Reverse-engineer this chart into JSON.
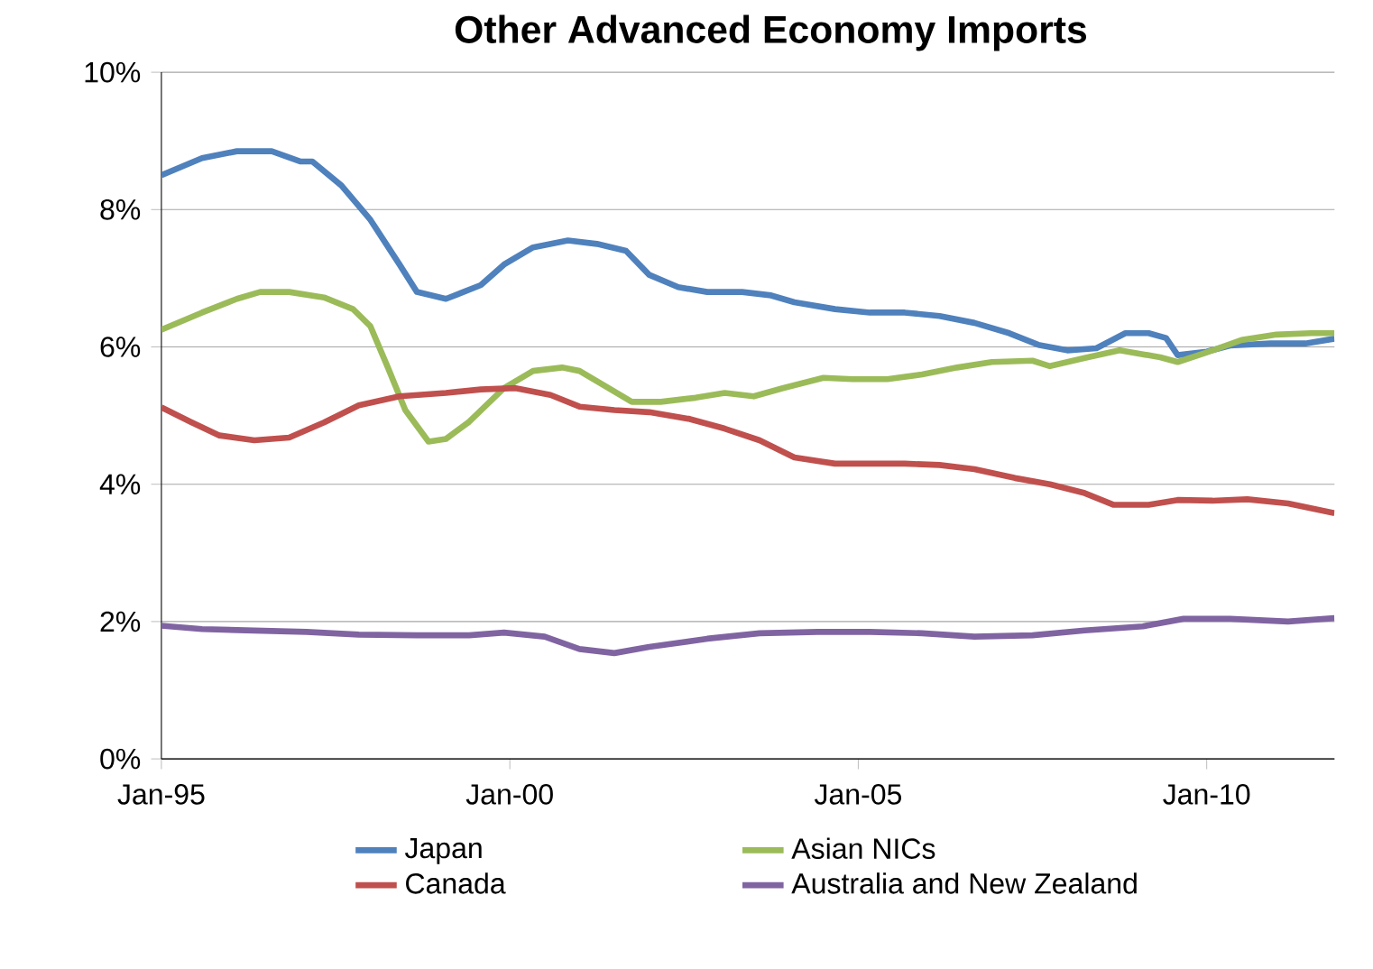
{
  "chart_data": {
    "type": "line",
    "title": "Other Advanced Economy Imports",
    "xlim": [
      "1995-01",
      "2011-11"
    ],
    "xticks": [
      {
        "value": "1995-01",
        "label": "Jan-95"
      },
      {
        "value": "2000-01",
        "label": "Jan-00"
      },
      {
        "value": "2005-01",
        "label": "Jan-05"
      },
      {
        "value": "2010-01",
        "label": "Jan-10"
      }
    ],
    "ylim": [
      0,
      10
    ],
    "yticks": [
      {
        "value": 0,
        "label": "0%"
      },
      {
        "value": 2,
        "label": "2%"
      },
      {
        "value": 4,
        "label": "4%"
      },
      {
        "value": 6,
        "label": "6%"
      },
      {
        "value": 8,
        "label": "8%"
      },
      {
        "value": 10,
        "label": "10%"
      }
    ],
    "grid": "y",
    "legend": "bottom",
    "marker": "none",
    "line_style": "solid",
    "series": [
      {
        "name": "Japan",
        "color": "#4f81bd",
        "x": [
          "1995-01",
          "1995-08",
          "1996-02",
          "1996-08",
          "1997-01",
          "1997-03",
          "1997-08",
          "1998-01",
          "1998-06",
          "1998-09",
          "1999-02",
          "1999-08",
          "1999-12",
          "2000-05",
          "2000-11",
          "2001-04",
          "2001-09",
          "2002-01",
          "2002-06",
          "2002-11",
          "2003-05",
          "2003-10",
          "2004-02",
          "2004-09",
          "2005-03",
          "2005-09",
          "2006-03",
          "2006-09",
          "2007-03",
          "2007-08",
          "2008-01",
          "2008-06",
          "2008-11",
          "2009-03",
          "2009-06",
          "2009-08",
          "2010-01",
          "2010-05",
          "2010-12",
          "2011-06",
          "2011-11"
        ],
        "values": [
          8.5,
          8.75,
          8.85,
          8.85,
          8.7,
          8.7,
          8.35,
          7.85,
          7.2,
          6.8,
          6.7,
          6.9,
          7.2,
          7.45,
          7.55,
          7.5,
          7.4,
          7.05,
          6.87,
          6.8,
          6.8,
          6.75,
          6.65,
          6.55,
          6.5,
          6.5,
          6.45,
          6.35,
          6.2,
          6.03,
          5.95,
          5.98,
          6.2,
          6.2,
          6.13,
          5.88,
          5.93,
          6.02,
          6.05,
          6.05,
          6.12
        ]
      },
      {
        "name": "Asian NICs",
        "color": "#9bbb59",
        "x": [
          "1995-01",
          "1995-08",
          "1996-02",
          "1996-06",
          "1996-11",
          "1997-05",
          "1997-10",
          "1998-01",
          "1998-04",
          "1998-07",
          "1998-11",
          "1999-02",
          "1999-06",
          "1999-12",
          "2000-05",
          "2000-10",
          "2001-01",
          "2001-06",
          "2001-10",
          "2002-03",
          "2002-09",
          "2003-02",
          "2003-07",
          "2003-12",
          "2004-07",
          "2004-12",
          "2005-06",
          "2005-12",
          "2006-06",
          "2006-12",
          "2007-07",
          "2007-10",
          "2008-04",
          "2008-10",
          "2009-05",
          "2009-08",
          "2010-01",
          "2010-07",
          "2011-01",
          "2011-07",
          "2011-11"
        ],
        "values": [
          6.25,
          6.5,
          6.7,
          6.8,
          6.8,
          6.72,
          6.55,
          6.3,
          5.7,
          5.08,
          4.62,
          4.66,
          4.91,
          5.4,
          5.65,
          5.7,
          5.65,
          5.4,
          5.2,
          5.2,
          5.26,
          5.33,
          5.28,
          5.4,
          5.55,
          5.53,
          5.53,
          5.6,
          5.7,
          5.78,
          5.8,
          5.72,
          5.84,
          5.95,
          5.85,
          5.78,
          5.92,
          6.1,
          6.18,
          6.2,
          6.2
        ]
      },
      {
        "name": "Canada",
        "color": "#c0504d",
        "x": [
          "1995-01",
          "1995-06",
          "1995-11",
          "1996-05",
          "1996-11",
          "1997-05",
          "1997-11",
          "1998-06",
          "1999-02",
          "1999-08",
          "2000-02",
          "2000-08",
          "2001-01",
          "2001-07",
          "2002-01",
          "2002-08",
          "2003-02",
          "2003-08",
          "2004-02",
          "2004-09",
          "2005-03",
          "2005-09",
          "2006-03",
          "2006-09",
          "2007-04",
          "2007-10",
          "2008-04",
          "2008-09",
          "2009-03",
          "2009-08",
          "2010-02",
          "2010-08",
          "2011-03",
          "2011-11"
        ],
        "values": [
          5.12,
          4.91,
          4.71,
          4.64,
          4.68,
          4.9,
          5.15,
          5.28,
          5.33,
          5.38,
          5.4,
          5.3,
          5.13,
          5.08,
          5.05,
          4.95,
          4.81,
          4.64,
          4.39,
          4.3,
          4.3,
          4.3,
          4.28,
          4.22,
          4.09,
          4.0,
          3.87,
          3.7,
          3.7,
          3.77,
          3.76,
          3.78,
          3.72,
          3.58
        ]
      },
      {
        "name": "Australia and New Zealand",
        "color": "#8064a2",
        "x": [
          "1995-01",
          "1995-08",
          "1996-05",
          "1997-02",
          "1997-11",
          "1998-09",
          "1999-06",
          "1999-12",
          "2000-07",
          "2001-01",
          "2001-07",
          "2002-01",
          "2002-11",
          "2003-08",
          "2004-06",
          "2005-03",
          "2005-12",
          "2006-09",
          "2007-07",
          "2008-04",
          "2009-02",
          "2009-09",
          "2010-05",
          "2011-03",
          "2011-11"
        ],
        "values": [
          1.94,
          1.89,
          1.87,
          1.85,
          1.81,
          1.8,
          1.8,
          1.84,
          1.78,
          1.6,
          1.54,
          1.63,
          1.75,
          1.83,
          1.85,
          1.85,
          1.83,
          1.78,
          1.8,
          1.87,
          1.93,
          2.04,
          2.04,
          2.0,
          2.05
        ]
      }
    ]
  }
}
